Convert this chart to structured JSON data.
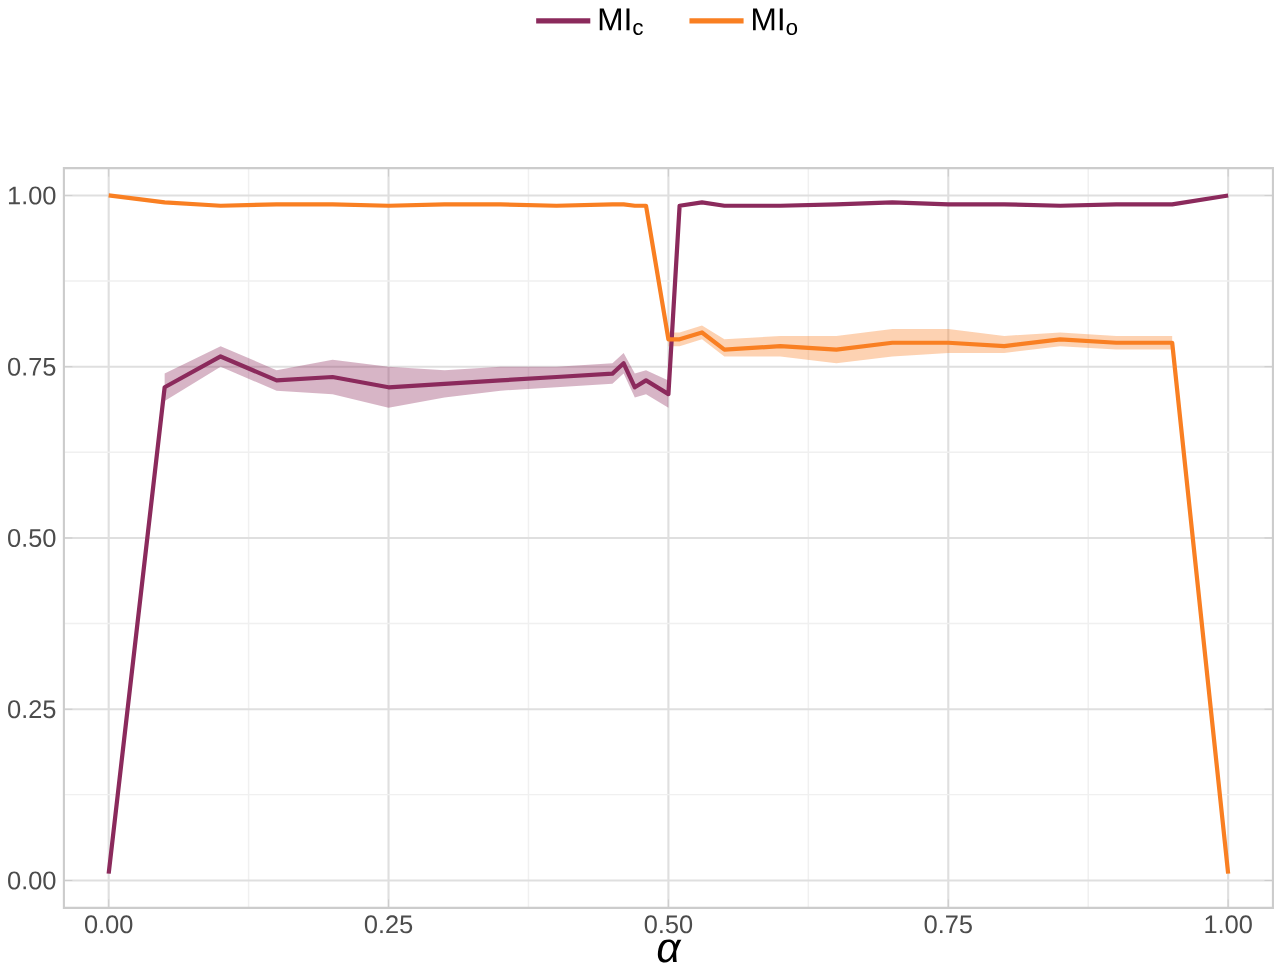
{
  "chart_data": {
    "type": "line",
    "xlabel": "α",
    "x": [
      0,
      0.05,
      0.1,
      0.15,
      0.2,
      0.25,
      0.3,
      0.35,
      0.4,
      0.45,
      0.46,
      0.47,
      0.48,
      0.5,
      0.51,
      0.53,
      0.55,
      0.6,
      0.65,
      0.7,
      0.75,
      0.8,
      0.85,
      0.9,
      0.95,
      1.0
    ],
    "series": [
      {
        "name": "MI$_{c}$",
        "color": "#8b2a5c",
        "values": [
          0.01,
          0.72,
          0.765,
          0.73,
          0.735,
          0.72,
          0.725,
          0.73,
          0.735,
          0.74,
          0.755,
          0.72,
          0.73,
          0.71,
          0.985,
          0.99,
          0.985,
          0.985,
          0.987,
          0.99,
          0.987,
          0.987,
          0.985,
          0.987,
          0.987,
          1.0
        ],
        "lower": [
          null,
          0.7,
          0.75,
          0.715,
          0.71,
          0.69,
          0.705,
          0.715,
          0.72,
          0.725,
          0.74,
          0.705,
          0.71,
          0.69,
          null,
          null,
          null,
          null,
          null,
          null,
          null,
          null,
          null,
          null,
          null,
          null
        ],
        "upper": [
          null,
          0.74,
          0.78,
          0.745,
          0.76,
          0.75,
          0.745,
          0.75,
          0.75,
          0.755,
          0.77,
          0.74,
          0.745,
          0.73,
          null,
          null,
          null,
          null,
          null,
          null,
          null,
          null,
          null,
          null,
          null,
          null
        ]
      },
      {
        "name": "MI$_{o}$",
        "color": "#f97f22",
        "values": [
          1.0,
          0.99,
          0.985,
          0.987,
          0.987,
          0.985,
          0.987,
          0.987,
          0.985,
          0.987,
          0.987,
          0.985,
          0.985,
          0.79,
          0.79,
          0.8,
          0.775,
          0.78,
          0.775,
          0.785,
          0.785,
          0.78,
          0.79,
          0.785,
          0.785,
          0.01
        ],
        "lower": [
          null,
          null,
          null,
          null,
          null,
          null,
          null,
          null,
          null,
          null,
          null,
          null,
          null,
          0.78,
          0.78,
          0.79,
          0.765,
          0.765,
          0.755,
          0.765,
          0.77,
          0.77,
          0.78,
          0.775,
          0.775,
          null
        ],
        "upper": [
          null,
          null,
          null,
          null,
          null,
          null,
          null,
          null,
          null,
          null,
          null,
          null,
          null,
          0.8,
          0.8,
          0.81,
          0.79,
          0.795,
          0.795,
          0.805,
          0.805,
          0.795,
          0.8,
          0.795,
          0.795,
          null
        ]
      }
    ],
    "xlim": [
      -0.04,
      1.04
    ],
    "ylim": [
      -0.04,
      1.04
    ],
    "xticks": [
      {
        "value": 0,
        "label": "0.00"
      },
      0.25,
      {
        "value": 0.5,
        "label": "0.50"
      },
      0.75,
      {
        "value": 1,
        "label": "1.00"
      }
    ],
    "yticks": [
      {
        "value": 0,
        "label": "0.00"
      },
      0.25,
      {
        "value": 0.5,
        "label": "0.50"
      },
      0.75,
      {
        "value": 1,
        "label": "1.00"
      }
    ],
    "grid": true,
    "legend": "top",
    "line_style": "solid",
    "marker": "none"
  }
}
